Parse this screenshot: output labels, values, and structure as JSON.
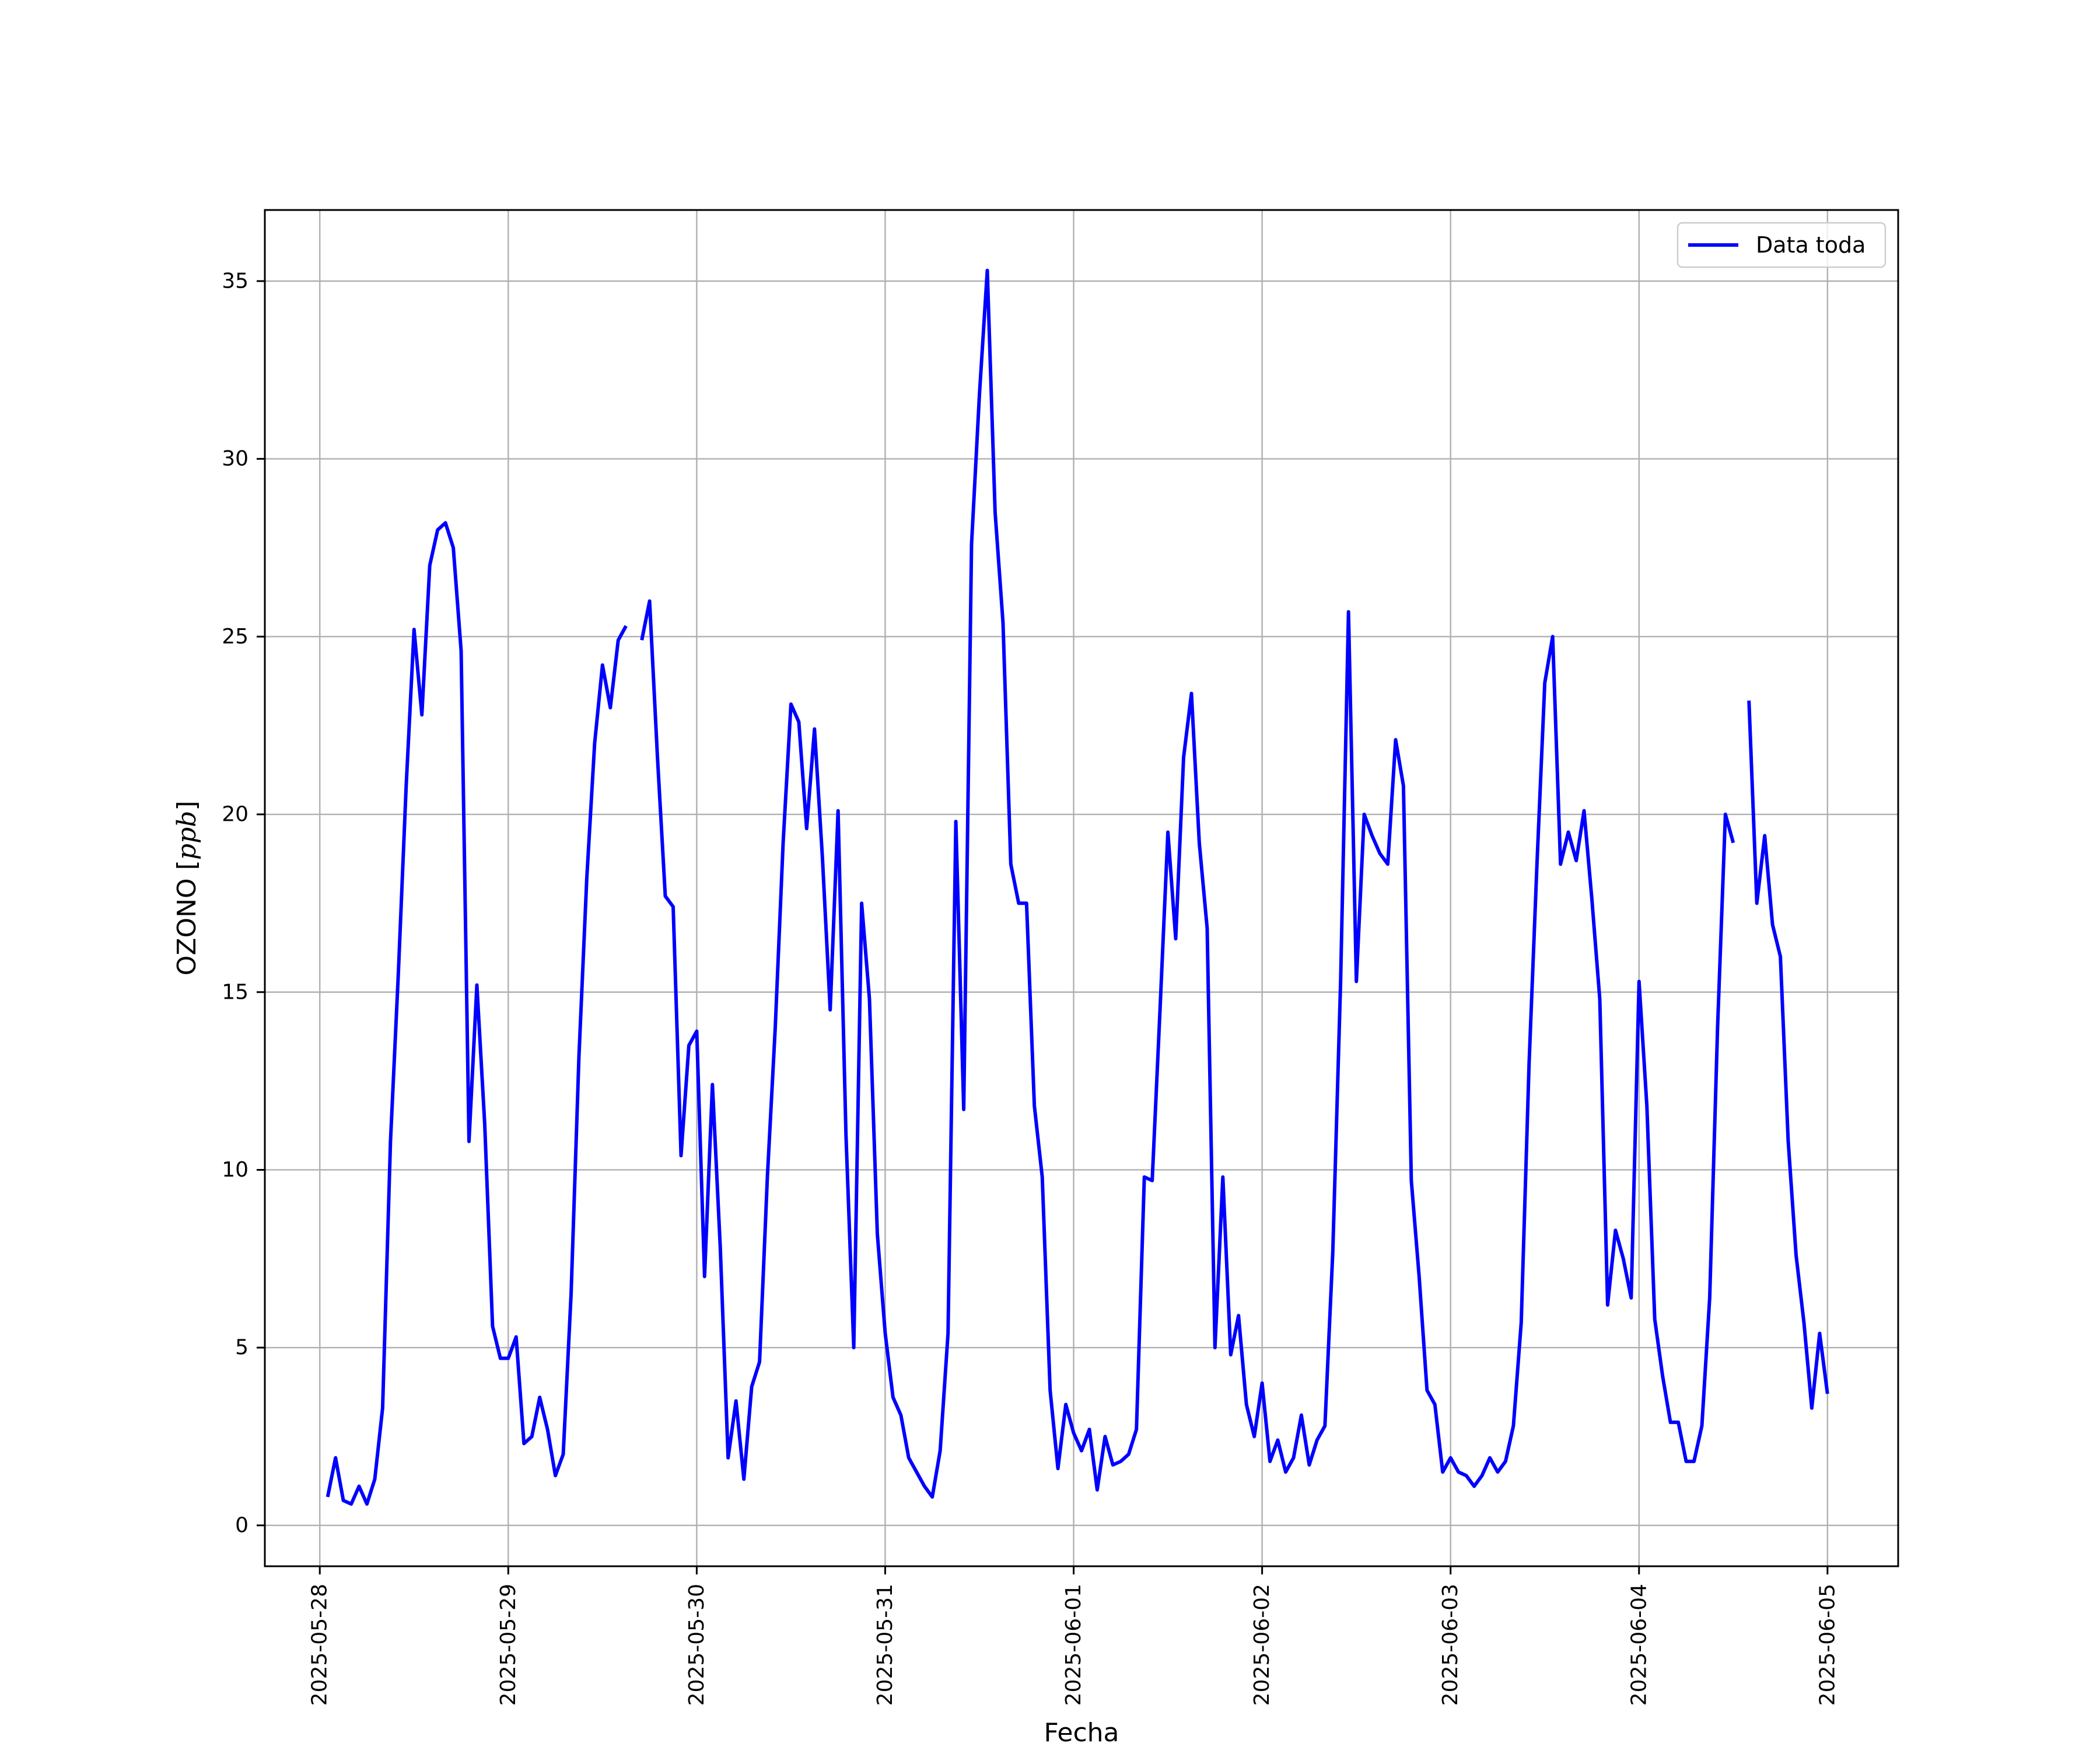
{
  "chart_data": {
    "type": "line",
    "xlabel": "Fecha",
    "ylabel": "OZONO [ppb]",
    "ylabel_parts": [
      "OZONO [",
      "ppb",
      "]"
    ],
    "xlim": [
      "2025-05-27T17:00",
      "2025-06-05T09:00"
    ],
    "ylim": [
      -1.15,
      37.0
    ],
    "xticks": [
      "2025-05-28",
      "2025-05-29",
      "2025-05-30",
      "2025-05-31",
      "2025-06-01",
      "2025-06-02",
      "2025-06-03",
      "2025-06-04",
      "2025-06-05"
    ],
    "yticks": [
      0,
      5,
      10,
      15,
      20,
      25,
      30,
      35
    ],
    "grid": true,
    "legend_position": "top-right",
    "series": [
      {
        "name": "Data toda",
        "color": "#0000ff",
        "points": [
          [
            "2025-05-28T01:00",
            0.8
          ],
          [
            "2025-05-28T02:00",
            1.9
          ],
          [
            "2025-05-28T03:00",
            0.7
          ],
          [
            "2025-05-28T04:00",
            0.6
          ],
          [
            "2025-05-28T05:00",
            1.1
          ],
          [
            "2025-05-28T06:00",
            0.6
          ],
          [
            "2025-05-28T07:00",
            1.3
          ],
          [
            "2025-05-28T08:00",
            3.3
          ],
          [
            "2025-05-28T09:00",
            10.8
          ],
          [
            "2025-05-28T10:00",
            15.5
          ],
          [
            "2025-05-28T11:00",
            20.8
          ],
          [
            "2025-05-28T12:00",
            25.2
          ],
          [
            "2025-05-28T13:00",
            22.8
          ],
          [
            "2025-05-28T14:00",
            27.0
          ],
          [
            "2025-05-28T15:00",
            28.0
          ],
          [
            "2025-05-28T16:00",
            28.2
          ],
          [
            "2025-05-28T17:00",
            27.5
          ],
          [
            "2025-05-28T18:00",
            24.6
          ],
          [
            "2025-05-28T19:00",
            10.8
          ],
          [
            "2025-05-28T20:00",
            15.2
          ],
          [
            "2025-05-28T21:00",
            11.3
          ],
          [
            "2025-05-28T22:00",
            5.6
          ],
          [
            "2025-05-28T23:00",
            4.7
          ],
          [
            "2025-05-29T00:00",
            4.7
          ],
          [
            "2025-05-29T01:00",
            5.3
          ],
          [
            "2025-05-29T02:00",
            2.3
          ],
          [
            "2025-05-29T03:00",
            2.5
          ],
          [
            "2025-05-29T04:00",
            3.6
          ],
          [
            "2025-05-29T05:00",
            2.7
          ],
          [
            "2025-05-29T06:00",
            1.4
          ],
          [
            "2025-05-29T07:00",
            2.0
          ],
          [
            "2025-05-29T08:00",
            6.5
          ],
          [
            "2025-05-29T09:00",
            13.2
          ],
          [
            "2025-05-29T10:00",
            18.2
          ],
          [
            "2025-05-29T11:00",
            22.0
          ],
          [
            "2025-05-29T12:00",
            24.2
          ],
          [
            "2025-05-29T13:00",
            23.0
          ],
          [
            "2025-05-29T14:00",
            24.9
          ],
          [
            "2025-05-29T15:00",
            25.3
          ],
          null,
          [
            "2025-05-29T17:00",
            24.9
          ],
          [
            "2025-05-29T18:00",
            26.0
          ],
          [
            "2025-05-29T19:00",
            21.6
          ],
          [
            "2025-05-29T20:00",
            17.7
          ],
          [
            "2025-05-29T21:00",
            17.4
          ],
          [
            "2025-05-29T22:00",
            10.4
          ],
          [
            "2025-05-29T23:00",
            13.5
          ],
          [
            "2025-05-30T00:00",
            13.9
          ],
          [
            "2025-05-30T01:00",
            7.0
          ],
          [
            "2025-05-30T02:00",
            12.4
          ],
          [
            "2025-05-30T03:00",
            7.8
          ],
          [
            "2025-05-30T04:00",
            1.9
          ],
          [
            "2025-05-30T05:00",
            3.5
          ],
          [
            "2025-05-30T06:00",
            1.3
          ],
          [
            "2025-05-30T07:00",
            3.9
          ],
          [
            "2025-05-30T08:00",
            4.6
          ],
          [
            "2025-05-30T09:00",
            9.8
          ],
          [
            "2025-05-30T10:00",
            14.0
          ],
          [
            "2025-05-30T11:00",
            19.2
          ],
          [
            "2025-05-30T12:00",
            23.1
          ],
          [
            "2025-05-30T13:00",
            22.6
          ],
          [
            "2025-05-30T14:00",
            19.6
          ],
          [
            "2025-05-30T15:00",
            22.4
          ],
          [
            "2025-05-30T16:00",
            18.8
          ],
          [
            "2025-05-30T17:00",
            14.5
          ],
          [
            "2025-05-30T18:00",
            20.1
          ],
          [
            "2025-05-30T19:00",
            11.0
          ],
          [
            "2025-05-30T20:00",
            5.0
          ],
          [
            "2025-05-30T21:00",
            17.5
          ],
          [
            "2025-05-30T22:00",
            14.8
          ],
          [
            "2025-05-30T23:00",
            8.2
          ],
          [
            "2025-05-31T00:00",
            5.4
          ],
          [
            "2025-05-31T01:00",
            3.6
          ],
          [
            "2025-05-31T02:00",
            3.1
          ],
          [
            "2025-05-31T03:00",
            1.9
          ],
          [
            "2025-05-31T04:00",
            1.5
          ],
          [
            "2025-05-31T05:00",
            1.1
          ],
          [
            "2025-05-31T06:00",
            0.8
          ],
          [
            "2025-05-31T07:00",
            2.1
          ],
          [
            "2025-05-31T08:00",
            5.4
          ],
          [
            "2025-05-31T09:00",
            19.8
          ],
          [
            "2025-05-31T10:00",
            11.7
          ],
          [
            "2025-05-31T11:00",
            27.6
          ],
          [
            "2025-05-31T12:00",
            31.8
          ],
          [
            "2025-05-31T13:00",
            35.3
          ],
          [
            "2025-05-31T14:00",
            28.5
          ],
          [
            "2025-05-31T15:00",
            25.4
          ],
          [
            "2025-05-31T16:00",
            18.6
          ],
          [
            "2025-05-31T17:00",
            17.5
          ],
          [
            "2025-05-31T18:00",
            17.5
          ],
          [
            "2025-05-31T19:00",
            11.8
          ],
          [
            "2025-05-31T20:00",
            9.8
          ],
          [
            "2025-05-31T21:00",
            3.8
          ],
          [
            "2025-05-31T22:00",
            1.6
          ],
          [
            "2025-05-31T23:00",
            3.4
          ],
          [
            "2025-06-01T00:00",
            2.6
          ],
          [
            "2025-06-01T01:00",
            2.1
          ],
          [
            "2025-06-01T02:00",
            2.7
          ],
          [
            "2025-06-01T03:00",
            1.0
          ],
          [
            "2025-06-01T04:00",
            2.5
          ],
          [
            "2025-06-01T05:00",
            1.7
          ],
          [
            "2025-06-01T06:00",
            1.8
          ],
          [
            "2025-06-01T07:00",
            2.0
          ],
          [
            "2025-06-01T08:00",
            2.7
          ],
          [
            "2025-06-01T09:00",
            9.8
          ],
          [
            "2025-06-01T10:00",
            9.7
          ],
          [
            "2025-06-01T11:00",
            14.5
          ],
          [
            "2025-06-01T12:00",
            19.5
          ],
          [
            "2025-06-01T13:00",
            16.5
          ],
          [
            "2025-06-01T14:00",
            21.6
          ],
          [
            "2025-06-01T15:00",
            23.4
          ],
          [
            "2025-06-01T16:00",
            19.2
          ],
          [
            "2025-06-01T17:00",
            16.8
          ],
          [
            "2025-06-01T18:00",
            5.0
          ],
          [
            "2025-06-01T19:00",
            9.8
          ],
          [
            "2025-06-01T20:00",
            4.8
          ],
          [
            "2025-06-01T21:00",
            5.9
          ],
          [
            "2025-06-01T22:00",
            3.4
          ],
          [
            "2025-06-01T23:00",
            2.5
          ],
          [
            "2025-06-02T00:00",
            4.0
          ],
          [
            "2025-06-02T01:00",
            1.8
          ],
          [
            "2025-06-02T02:00",
            2.4
          ],
          [
            "2025-06-02T03:00",
            1.5
          ],
          [
            "2025-06-02T04:00",
            1.9
          ],
          [
            "2025-06-02T05:00",
            3.1
          ],
          [
            "2025-06-02T06:00",
            1.7
          ],
          [
            "2025-06-02T07:00",
            2.4
          ],
          [
            "2025-06-02T08:00",
            2.8
          ],
          [
            "2025-06-02T09:00",
            7.7
          ],
          [
            "2025-06-02T10:00",
            15.3
          ],
          [
            "2025-06-02T11:00",
            25.7
          ],
          [
            "2025-06-02T12:00",
            15.3
          ],
          [
            "2025-06-02T13:00",
            20.0
          ],
          [
            "2025-06-02T14:00",
            19.4
          ],
          [
            "2025-06-02T15:00",
            18.9
          ],
          [
            "2025-06-02T16:00",
            18.6
          ],
          [
            "2025-06-02T17:00",
            22.1
          ],
          [
            "2025-06-02T18:00",
            20.8
          ],
          [
            "2025-06-02T19:00",
            9.7
          ],
          [
            "2025-06-02T20:00",
            7.0
          ],
          [
            "2025-06-02T21:00",
            3.8
          ],
          [
            "2025-06-02T22:00",
            3.4
          ],
          [
            "2025-06-02T23:00",
            1.5
          ],
          [
            "2025-06-03T00:00",
            1.9
          ],
          [
            "2025-06-03T01:00",
            1.5
          ],
          [
            "2025-06-03T02:00",
            1.4
          ],
          [
            "2025-06-03T03:00",
            1.1
          ],
          [
            "2025-06-03T04:00",
            1.4
          ],
          [
            "2025-06-03T05:00",
            1.9
          ],
          [
            "2025-06-03T06:00",
            1.5
          ],
          [
            "2025-06-03T07:00",
            1.8
          ],
          [
            "2025-06-03T08:00",
            2.8
          ],
          [
            "2025-06-03T09:00",
            5.7
          ],
          [
            "2025-06-03T10:00",
            13.0
          ],
          [
            "2025-06-03T11:00",
            18.6
          ],
          [
            "2025-06-03T12:00",
            23.7
          ],
          [
            "2025-06-03T13:00",
            25.0
          ],
          [
            "2025-06-03T14:00",
            18.6
          ],
          [
            "2025-06-03T15:00",
            19.5
          ],
          [
            "2025-06-03T16:00",
            18.7
          ],
          [
            "2025-06-03T17:00",
            20.1
          ],
          [
            "2025-06-03T18:00",
            17.6
          ],
          [
            "2025-06-03T19:00",
            14.8
          ],
          [
            "2025-06-03T20:00",
            6.2
          ],
          [
            "2025-06-03T21:00",
            8.3
          ],
          [
            "2025-06-03T22:00",
            7.5
          ],
          [
            "2025-06-03T23:00",
            6.4
          ],
          [
            "2025-06-04T00:00",
            15.3
          ],
          [
            "2025-06-04T01:00",
            11.8
          ],
          [
            "2025-06-04T02:00",
            5.8
          ],
          [
            "2025-06-04T03:00",
            4.2
          ],
          [
            "2025-06-04T04:00",
            2.9
          ],
          [
            "2025-06-04T05:00",
            2.9
          ],
          [
            "2025-06-04T06:00",
            1.8
          ],
          [
            "2025-06-04T07:00",
            1.8
          ],
          [
            "2025-06-04T08:00",
            2.8
          ],
          [
            "2025-06-04T09:00",
            6.4
          ],
          [
            "2025-06-04T10:00",
            14.0
          ],
          [
            "2025-06-04T11:00",
            20.0
          ],
          [
            "2025-06-04T12:00",
            19.2
          ],
          null,
          [
            "2025-06-04T14:00",
            23.2
          ],
          [
            "2025-06-04T15:00",
            17.5
          ],
          [
            "2025-06-04T16:00",
            19.4
          ],
          [
            "2025-06-04T17:00",
            16.9
          ],
          [
            "2025-06-04T18:00",
            16.0
          ],
          [
            "2025-06-04T19:00",
            10.8
          ],
          [
            "2025-06-04T20:00",
            7.6
          ],
          [
            "2025-06-04T21:00",
            5.7
          ],
          [
            "2025-06-04T22:00",
            3.3
          ],
          [
            "2025-06-04T23:00",
            5.4
          ],
          [
            "2025-06-05T00:00",
            3.7
          ]
        ]
      }
    ]
  }
}
